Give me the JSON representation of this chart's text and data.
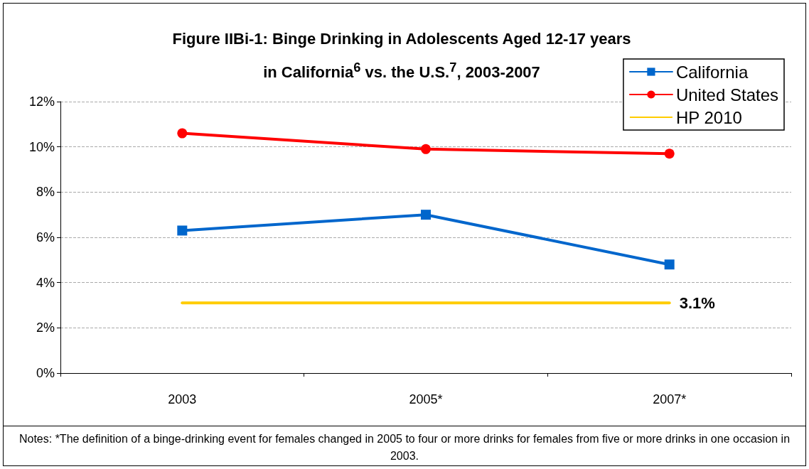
{
  "chart_data": {
    "type": "line",
    "title": "Figure IIBi-1: Binge Drinking in Adolescents Aged 12-17 years in California$^{6}$ vs. the U.S.$^{7}$, 2003-2007",
    "categories": [
      "2003",
      "2005*",
      "2007*"
    ],
    "series": [
      {
        "name": "California",
        "color": "#0066cc",
        "marker": "square",
        "values": [
          6.3,
          7.0,
          4.8
        ]
      },
      {
        "name": "United States",
        "color": "#ff0000",
        "marker": "circle",
        "values": [
          10.6,
          9.9,
          9.7
        ]
      },
      {
        "name": "HP 2010",
        "color": "#ffcc00",
        "marker": "none",
        "values": [
          3.1,
          3.1,
          3.1
        ],
        "value_labels": [
          null,
          null,
          "3.1%"
        ]
      }
    ],
    "ylim": [
      0,
      12
    ],
    "yticks": [
      {
        "value": 0,
        "label": "0%"
      },
      {
        "value": 2,
        "label": "2%"
      },
      {
        "value": 4,
        "label": "4%"
      },
      {
        "value": 6,
        "label": "6%"
      },
      {
        "value": 8,
        "label": "8%"
      },
      {
        "value": 10,
        "label": "10%"
      },
      {
        "value": 12,
        "label": "12%"
      }
    ],
    "grid": "y",
    "legend": "top right",
    "annotations": [
      "Notes: *The definition of a binge-drinking event for females changed in 2005 to four or more drinks for females from five or more drinks in one occasion in 2003."
    ]
  }
}
